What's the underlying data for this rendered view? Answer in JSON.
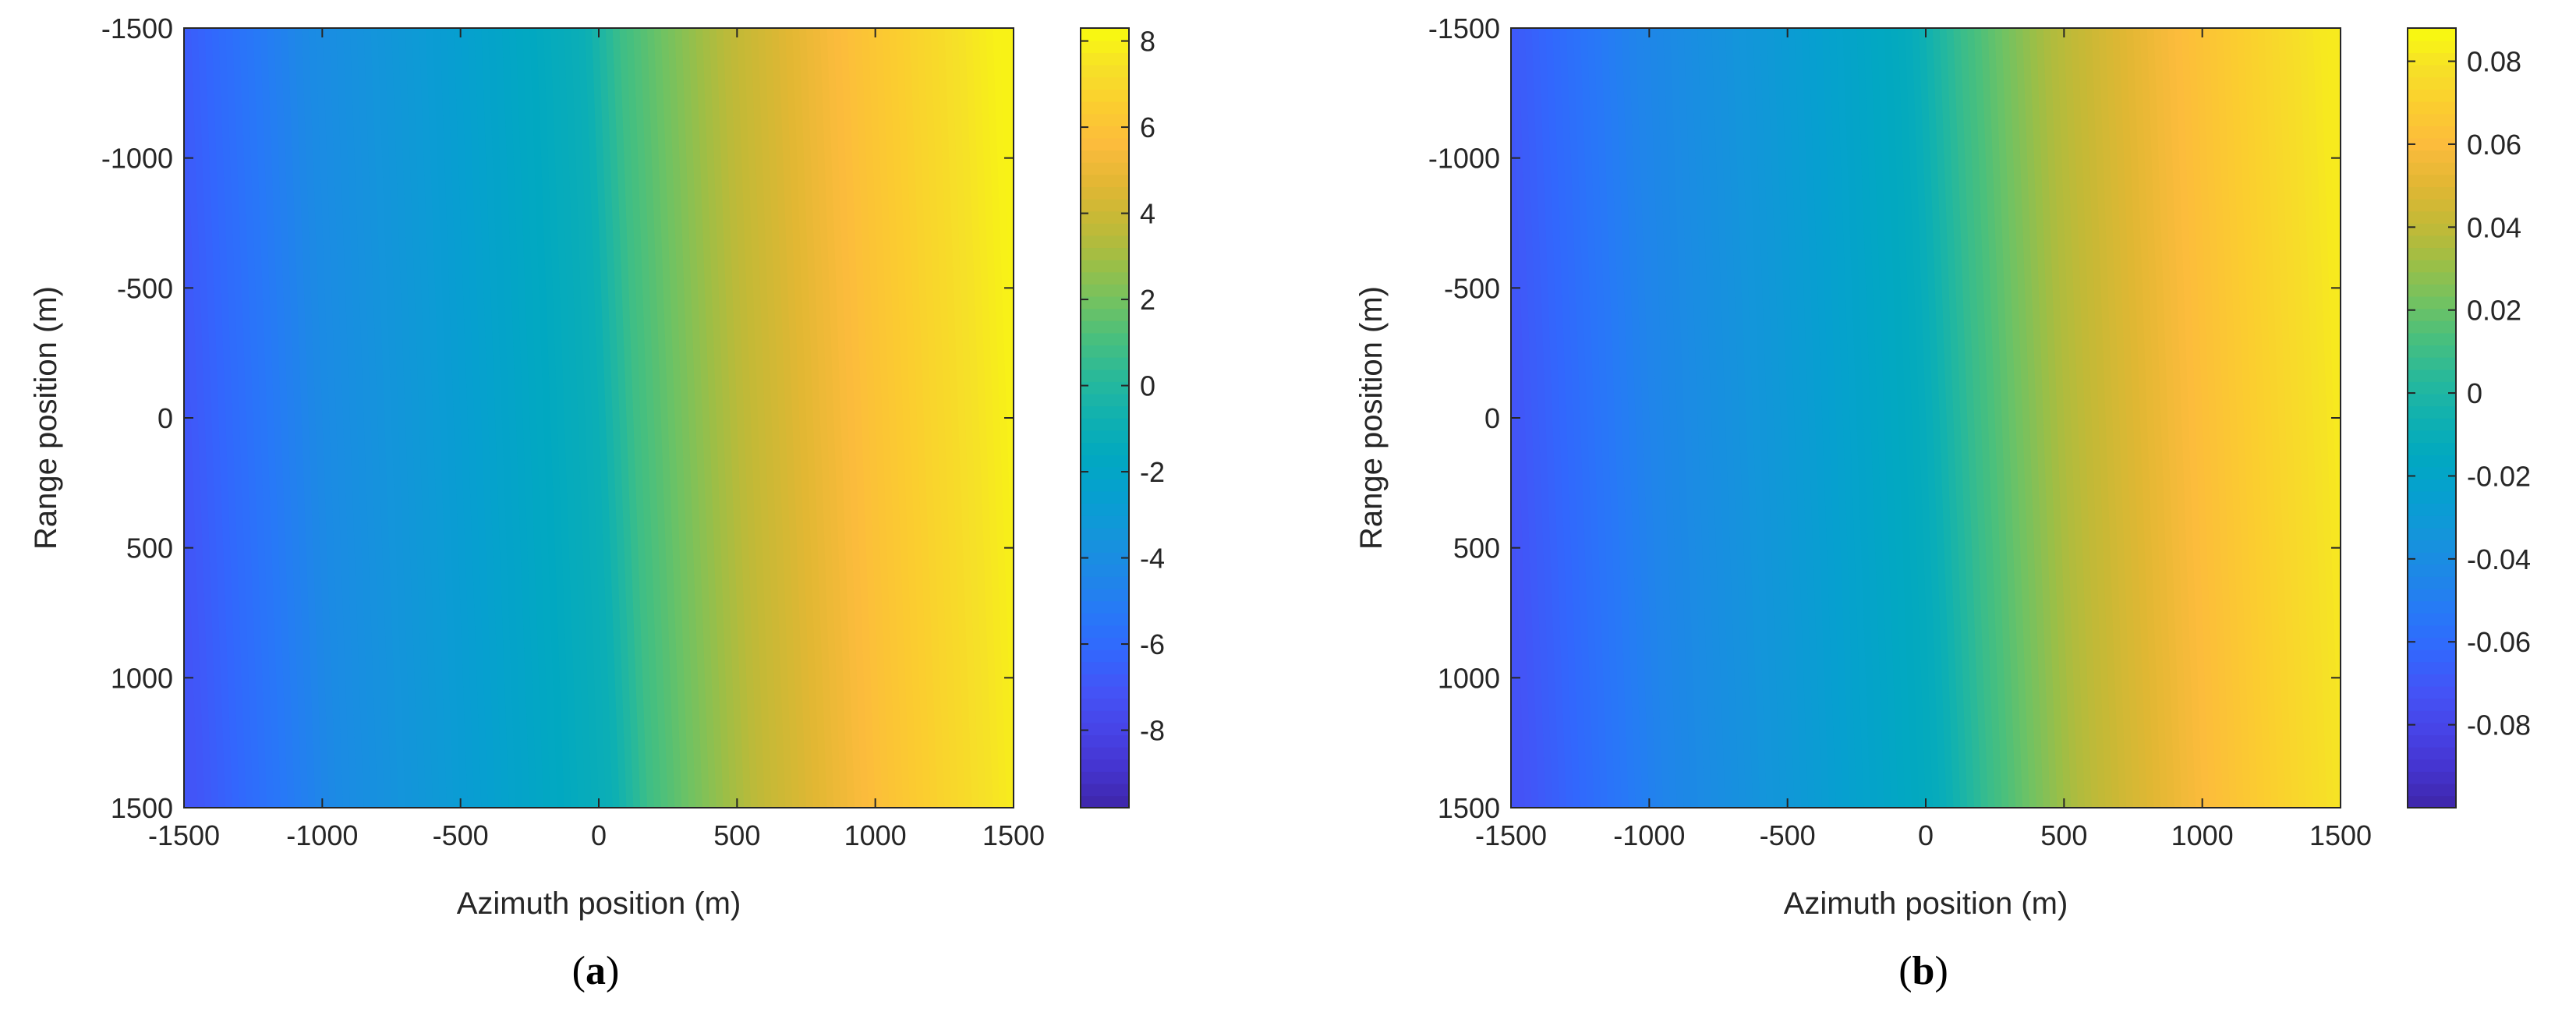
{
  "chart_data": [
    {
      "type": "heatmap",
      "panel_label": "(a)",
      "panel_letter": "a",
      "xlabel": "Azimuth position (m)",
      "ylabel": "Range position (m)",
      "xlim": [
        -1500,
        1500
      ],
      "ylim": [
        -1500,
        1500
      ],
      "y_reversed": true,
      "xticks": [
        -1500,
        -1000,
        -500,
        0,
        500,
        1000,
        1500
      ],
      "yticks": [
        -1500,
        -1000,
        -500,
        0,
        500,
        1000,
        1500
      ],
      "colormap": "parula",
      "colorbar": {
        "range": [
          -9.8,
          8.3
        ],
        "ticks": [
          -8,
          -6,
          -4,
          -2,
          0,
          2,
          4,
          6,
          8
        ],
        "tick_labels": [
          "-8",
          "-6",
          "-4",
          "-2",
          "0",
          "2",
          "4",
          "6",
          "8"
        ]
      },
      "x_profile": {
        "x": [
          -1500,
          -1000,
          -500,
          0,
          130,
          500,
          1000,
          1500
        ],
        "values": [
          -7.0,
          -4.2,
          -2.7,
          -1.0,
          0.8,
          3.5,
          6.0,
          8.0
        ]
      },
      "range_tilt": 1000
    },
    {
      "type": "heatmap",
      "panel_label": "(b)",
      "panel_letter": "b",
      "xlabel": "Azimuth position (m)",
      "ylabel": "Range position (m)",
      "xlim": [
        -1500,
        1500
      ],
      "ylim": [
        -1500,
        1500
      ],
      "y_reversed": true,
      "xticks": [
        -1500,
        -1000,
        -500,
        0,
        500,
        1000,
        1500
      ],
      "yticks": [
        -1500,
        -1000,
        -500,
        0,
        500,
        1000,
        1500
      ],
      "colormap": "parula",
      "colorbar": {
        "range": [
          -0.1,
          0.088
        ],
        "ticks": [
          -0.08,
          -0.06,
          -0.04,
          -0.02,
          0,
          0.02,
          0.04,
          0.06,
          0.08
        ],
        "tick_labels": [
          "-0.08",
          "-0.06",
          "-0.04",
          "-0.02",
          "0",
          "0.02",
          "0.04",
          "0.06",
          "0.08"
        ]
      },
      "x_profile": {
        "x": [
          -1500,
          -1000,
          -500,
          0,
          170,
          500,
          1000,
          1500
        ],
        "values": [
          -0.072,
          -0.046,
          -0.03,
          -0.012,
          0.008,
          0.036,
          0.062,
          0.082
        ]
      },
      "range_tilt": 1000
    }
  ]
}
